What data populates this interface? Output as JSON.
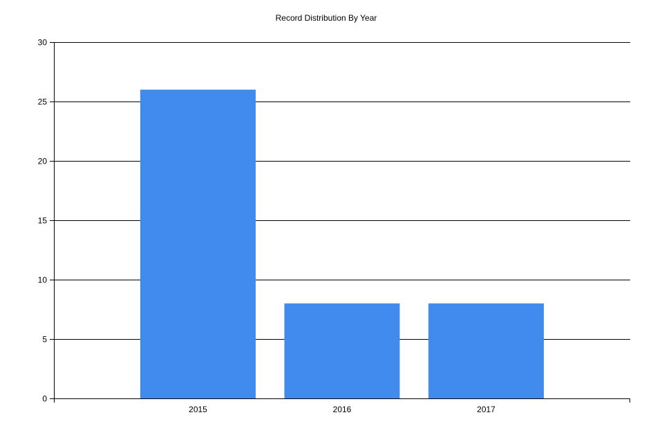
{
  "chart_data": {
    "type": "bar",
    "title": "Record Distribution By Year",
    "xlabel": "",
    "ylabel": "",
    "categories": [
      "2015",
      "2016",
      "2017"
    ],
    "values": [
      26,
      8,
      8
    ],
    "ylim": [
      0,
      30
    ],
    "yticks": [
      "0",
      "5",
      "10",
      "15",
      "20",
      "25",
      "30"
    ],
    "grid": true,
    "legend": "none",
    "colors": {
      "bar": "#428bee",
      "gridline": "#000000",
      "axis": "#000000",
      "background": "#ffffff"
    }
  }
}
